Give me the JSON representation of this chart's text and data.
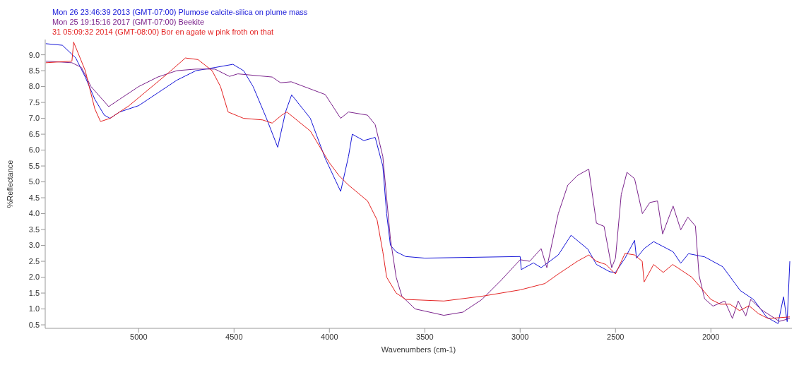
{
  "chart_data": {
    "type": "line",
    "xlabel": "Wavenumbers (cm-1)",
    "ylabel": "%Reflectance",
    "xlim": [
      5490,
      1575
    ],
    "ylim": [
      0.39,
      9.48
    ],
    "xticks": [
      5000,
      4500,
      4000,
      3500,
      3000,
      2500,
      2000
    ],
    "yticks": [
      0.5,
      {
        "value": 1,
        "label": "1.0"
      },
      1.5,
      {
        "value": 2,
        "label": "2.0"
      },
      2.5,
      {
        "value": 3,
        "label": "3.0"
      },
      3.5,
      {
        "value": 4,
        "label": "4.0"
      },
      4.5,
      {
        "value": 5,
        "label": "5.0"
      },
      5.5,
      {
        "value": 6,
        "label": "6.0"
      },
      6.5,
      {
        "value": 7,
        "label": "7.0"
      },
      7.5,
      {
        "value": 8,
        "label": "8.0"
      },
      8.5,
      {
        "value": 9,
        "label": "9.0"
      }
    ],
    "grid": false,
    "legend": "top left",
    "marker": "none",
    "line_style": "solid",
    "series": [
      {
        "name": "Mon 26 23:46:39 2013 (GMT-07:00) Plumose calcite-silica on plume mass",
        "color": "#1616d8",
        "x": [
          5487,
          5400,
          5330,
          5280,
          5230,
          5180,
          5150,
          5100,
          5000,
          4900,
          4800,
          4700,
          4600,
          4506,
          4450,
          4400,
          4330,
          4271,
          4230,
          4198,
          4100,
          4022,
          3941,
          3900,
          3880,
          3820,
          3760,
          3720,
          3700,
          3680,
          3650,
          3600,
          3500,
          3000,
          2994,
          2930,
          2890,
          2800,
          2733,
          2645,
          2600,
          2530,
          2500,
          2450,
          2400,
          2390,
          2350,
          2300,
          2198,
          2158,
          2117,
          2033,
          1938,
          1846,
          1777,
          1707,
          1648,
          1619,
          1600,
          1586
        ],
        "values": [
          9.35,
          9.3,
          8.9,
          8.3,
          7.6,
          7.1,
          7.0,
          7.2,
          7.4,
          7.8,
          8.2,
          8.5,
          8.6,
          8.7,
          8.5,
          8.0,
          7.0,
          6.09,
          7.2,
          7.74,
          7.0,
          5.74,
          4.7,
          5.8,
          6.5,
          6.3,
          6.4,
          5.5,
          4.0,
          3.0,
          2.8,
          2.65,
          2.6,
          2.65,
          2.24,
          2.45,
          2.3,
          2.7,
          3.32,
          2.88,
          2.4,
          2.17,
          2.15,
          2.6,
          3.16,
          2.6,
          2.9,
          3.12,
          2.8,
          2.44,
          2.74,
          2.64,
          2.33,
          1.58,
          1.3,
          0.74,
          0.54,
          1.38,
          0.6,
          2.5
        ]
      },
      {
        "name": "Mon 25 19:15:16 2017 (GMT-07:00) Beekite",
        "color": "#7b238c",
        "x": [
          5487,
          5350,
          5300,
          5250,
          5157,
          5100,
          5000,
          4900,
          4800,
          4700,
          4600,
          4524,
          4480,
          4300,
          4256,
          4200,
          4022,
          3941,
          3900,
          3800,
          3760,
          3720,
          3700,
          3680,
          3650,
          3620,
          3550,
          3400,
          3300,
          3200,
          3100,
          3000,
          2950,
          2890,
          2860,
          2800,
          2750,
          2700,
          2640,
          2600,
          2560,
          2520,
          2500,
          2470,
          2440,
          2400,
          2359,
          2320,
          2280,
          2253,
          2198,
          2158,
          2121,
          2081,
          2062,
          2033,
          1989,
          1927,
          1887,
          1857,
          1817,
          1791,
          1736,
          1641,
          1586
        ],
        "values": [
          8.8,
          8.75,
          8.6,
          8.0,
          7.37,
          7.6,
          8.0,
          8.3,
          8.5,
          8.55,
          8.55,
          8.32,
          8.4,
          8.3,
          8.12,
          8.15,
          7.75,
          7.0,
          7.2,
          7.1,
          6.8,
          5.8,
          4.5,
          3.2,
          2.0,
          1.4,
          1.0,
          0.8,
          0.9,
          1.3,
          1.9,
          2.55,
          2.5,
          2.9,
          2.3,
          4.0,
          4.9,
          5.2,
          5.4,
          3.7,
          3.6,
          2.3,
          2.6,
          4.6,
          5.3,
          5.1,
          4.0,
          4.35,
          4.4,
          3.36,
          4.24,
          3.49,
          3.89,
          3.61,
          2.06,
          1.32,
          1.09,
          1.25,
          0.7,
          1.25,
          0.78,
          1.3,
          0.98,
          0.61,
          0.7
        ]
      },
      {
        "name": "31 05:09:32 2014 (GMT-08:00) Bor en agate w pink froth on that",
        "color": "#e42222",
        "x": [
          5487,
          5350,
          5341,
          5280,
          5230,
          5200,
          5150,
          5050,
          4950,
          4850,
          4755,
          4689,
          4615,
          4571,
          4531,
          4450,
          4350,
          4300,
          4250,
          4223,
          4100,
          4000,
          3950,
          3900,
          3800,
          3750,
          3720,
          3700,
          3650,
          3600,
          3400,
          3200,
          3000,
          2870,
          2800,
          2700,
          2640,
          2600,
          2550,
          2500,
          2450,
          2400,
          2360,
          2350,
          2300,
          2250,
          2200,
          2150,
          2100,
          2000,
          1950,
          1900,
          1850,
          1800,
          1750,
          1700,
          1586
        ],
        "values": [
          8.75,
          8.8,
          9.4,
          8.5,
          7.3,
          6.9,
          7.0,
          7.4,
          7.9,
          8.4,
          8.9,
          8.85,
          8.5,
          8.0,
          7.2,
          7.0,
          6.95,
          6.85,
          7.1,
          7.2,
          6.6,
          5.6,
          5.2,
          4.9,
          4.4,
          3.8,
          2.8,
          2.0,
          1.5,
          1.3,
          1.25,
          1.4,
          1.6,
          1.8,
          2.1,
          2.5,
          2.7,
          2.5,
          2.4,
          2.1,
          2.75,
          2.7,
          2.5,
          1.85,
          2.4,
          2.15,
          2.4,
          2.2,
          2.0,
          1.3,
          1.15,
          1.15,
          0.95,
          1.1,
          0.85,
          0.7,
          0.75
        ]
      }
    ]
  }
}
